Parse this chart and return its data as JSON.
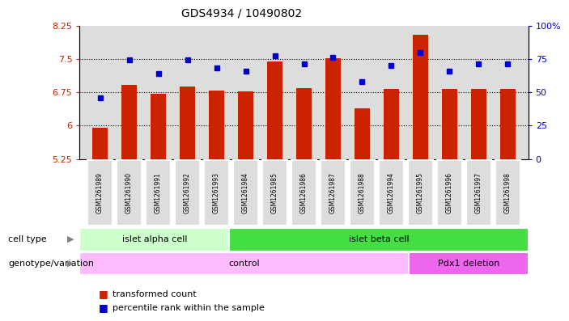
{
  "title": "GDS4934 / 10490802",
  "samples": [
    "GSM1261989",
    "GSM1261990",
    "GSM1261991",
    "GSM1261992",
    "GSM1261993",
    "GSM1261984",
    "GSM1261985",
    "GSM1261986",
    "GSM1261987",
    "GSM1261988",
    "GSM1261994",
    "GSM1261995",
    "GSM1261996",
    "GSM1261997",
    "GSM1261998"
  ],
  "bar_values": [
    5.95,
    6.92,
    6.72,
    6.88,
    6.78,
    6.76,
    7.45,
    6.84,
    7.52,
    6.38,
    6.82,
    8.05,
    6.82,
    6.82,
    6.82
  ],
  "dot_values_pct": [
    46,
    74,
    64,
    74,
    68,
    66,
    77,
    71,
    76,
    58,
    70,
    80,
    66,
    71,
    71
  ],
  "ylim_left": [
    5.25,
    8.25
  ],
  "ylim_right": [
    0,
    100
  ],
  "yticks_left": [
    5.25,
    6.0,
    6.75,
    7.5,
    8.25
  ],
  "yticks_right": [
    0,
    25,
    50,
    75,
    100
  ],
  "ytick_labels_left": [
    "5.25",
    "6",
    "6.75",
    "7.5",
    "8.25"
  ],
  "ytick_labels_right": [
    "0",
    "25",
    "50",
    "75",
    "100%"
  ],
  "hlines": [
    6.0,
    6.75,
    7.5
  ],
  "bar_color": "#cc2200",
  "dot_color": "#0000cc",
  "cell_type_labels": [
    {
      "text": "islet alpha cell",
      "start": 0,
      "end": 4,
      "color": "#ccffcc"
    },
    {
      "text": "islet beta cell",
      "start": 5,
      "end": 14,
      "color": "#44dd44"
    }
  ],
  "genotype_labels": [
    {
      "text": "control",
      "start": 0,
      "end": 10,
      "color": "#ffbbff"
    },
    {
      "text": "Pdx1 deletion",
      "start": 11,
      "end": 14,
      "color": "#ee66ee"
    }
  ],
  "legend": [
    {
      "label": "transformed count",
      "color": "#cc2200"
    },
    {
      "label": "percentile rank within the sample",
      "color": "#0000cc"
    }
  ],
  "axis_label_color_left": "#cc2200",
  "axis_label_color_right": "#0000cc",
  "bg_color": "#dddddd",
  "cell_type_row_label": "cell type",
  "genotype_row_label": "genotype/variation"
}
